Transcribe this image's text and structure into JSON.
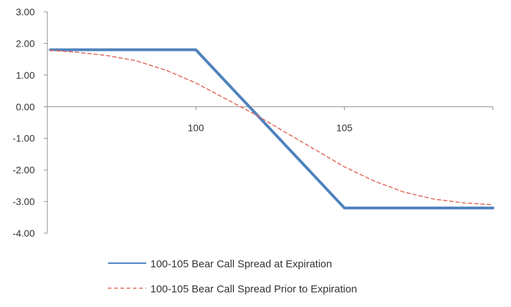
{
  "chart_data": {
    "type": "line",
    "title": "",
    "xlabel": "",
    "ylabel": "",
    "xlim": [
      95,
      110
    ],
    "ylim": [
      -4,
      3
    ],
    "y_ticks": [
      3,
      2,
      1,
      0,
      -1,
      -2,
      -3,
      -4
    ],
    "y_tick_labels": [
      "3.00",
      "2.00",
      "1.00",
      "0.00",
      "-1.00",
      "-2.00",
      "-3.00",
      "-4.00"
    ],
    "x_ticks": [
      100,
      105
    ],
    "x_tick_labels": [
      "100",
      "105"
    ],
    "x_axis_crosses_at": 0,
    "grid": false,
    "legend_position": "bottom",
    "series": [
      {
        "name": "100-105 Bear Call Spread at Expiration",
        "color": "#4f81bd",
        "style": "solid",
        "x": [
          95.1,
          100,
          105,
          110
        ],
        "y": [
          1.8,
          1.8,
          -3.2,
          -3.2
        ]
      },
      {
        "name": "100-105 Bear Call Spread Prior to Expiration",
        "color": "#e0685c",
        "style": "dashed",
        "x": [
          95.1,
          96,
          97,
          98,
          99,
          100,
          101,
          102,
          103,
          104,
          105,
          106,
          107,
          108,
          109,
          110
        ],
        "y": [
          1.78,
          1.72,
          1.62,
          1.45,
          1.15,
          0.75,
          0.25,
          -0.25,
          -0.8,
          -1.35,
          -1.9,
          -2.35,
          -2.7,
          -2.92,
          -3.04,
          -3.1
        ]
      }
    ]
  }
}
